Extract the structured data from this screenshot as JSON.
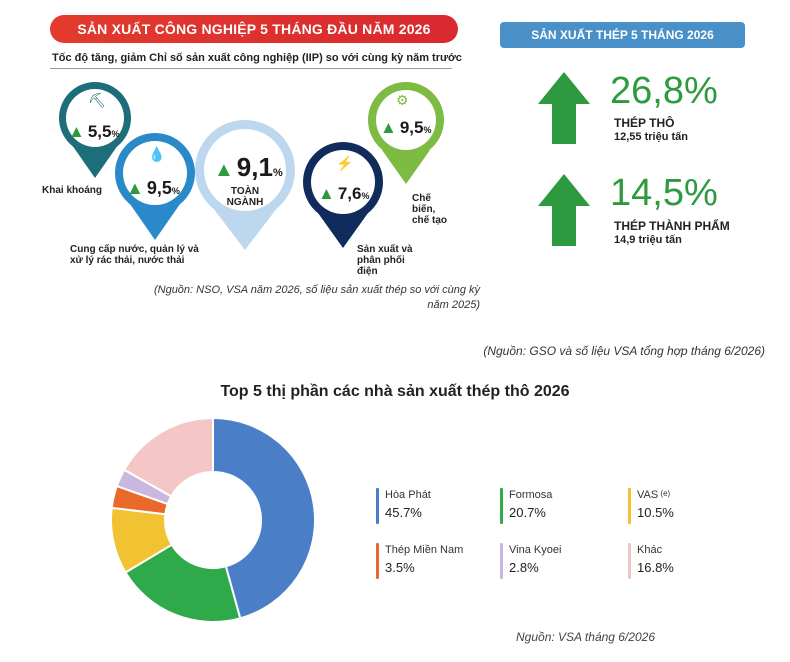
{
  "industry": {
    "title": "SẢN XUẤT CÔNG NGHIỆP 5 THÁNG ĐẦU NĂM 2026",
    "subtitle": "Tốc độ tăng, giảm Chỉ số sản xuất công nghiệp (IIP) so với cùng kỳ năm trước",
    "items": [
      {
        "value": "5,5",
        "unit": "%",
        "label": "Khai khoáng",
        "color": "#1b6e7a"
      },
      {
        "value": "9,5",
        "unit": "%",
        "label": "Cung cấp nước, quản lý và xử lý rác thải, nước thải",
        "color": "#2a8ac9"
      },
      {
        "value": "9,1",
        "unit": "%",
        "label": "TOÀN NGÀNH",
        "color": "#bcd7ee"
      },
      {
        "value": "7,6",
        "unit": "%",
        "label": "Sản xuất và phân phối điện",
        "color": "#102c5c"
      },
      {
        "value": "9,5",
        "unit": "%",
        "label": "Chế biến, chế tạo",
        "color": "#7dbb42"
      }
    ],
    "source": "(Nguồn: NSO, VSA năm 2026, số liệu sản xuất thép so với cùng kỳ năm 2025)"
  },
  "steel": {
    "title": "SẢN XUẤT THÉP 5 THÁNG 2026",
    "items": [
      {
        "pct": "26,8%",
        "name": "THÉP THÔ",
        "sub": "12,55 triệu tấn"
      },
      {
        "pct": "14,5%",
        "name": "THÉP THÀNH PHẨM",
        "sub": "14,9 triệu tấn"
      }
    ]
  },
  "gso_source": "(Nguồn: GSO và số liệu VSA tổng hợp tháng 6/2026)",
  "chart_data": {
    "type": "pie",
    "title": "Top 5 thị phần các nhà sản xuất thép thô 2026",
    "categories": [
      "Hòa Phát",
      "Formosa",
      "VAS",
      "Thép Miền Nam",
      "Vina Kyoei",
      "Khác"
    ],
    "values": [
      45.7,
      20.7,
      10.5,
      3.5,
      2.8,
      16.8
    ],
    "labels": [
      "45.7%",
      "20.7%",
      "10.5%",
      "3.5%",
      "2.8%",
      "16.8%"
    ],
    "notes": [
      "",
      "",
      "(e)",
      "",
      "",
      ""
    ],
    "colors": [
      "#4a7ec6",
      "#2eaa4a",
      "#f1c232",
      "#e8692a",
      "#c9b8de",
      "#f4c6c6"
    ],
    "donut": true,
    "legend_position": "right"
  },
  "vsa_source": "Nguồn: VSA tháng 6/2026"
}
